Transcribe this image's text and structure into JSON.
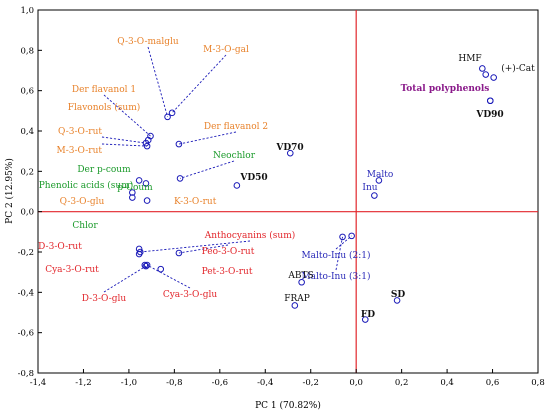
{
  "chart_data": {
    "type": "scatter",
    "xlabel": "PC 1 (70.82%)",
    "ylabel": "PC 2 (12.95%)",
    "xlim": [
      -1.4,
      0.8
    ],
    "ylim": [
      -0.8,
      1.0
    ],
    "xticks": [
      "-1,4",
      "-1,2",
      "-1,0",
      "-0,8",
      "-0,6",
      "-0,4",
      "-0,2",
      "0,0",
      "0,2",
      "0,4",
      "0,6",
      "0,8"
    ],
    "yticks": [
      "-0,8",
      "-0,6",
      "-0,4",
      "-0,2",
      "0,0",
      "0,2",
      "0,4",
      "0,6",
      "0,8",
      "1,0"
    ],
    "grid": false,
    "zero_lines": true,
    "colors": {
      "orange": "#e8822b",
      "green": "#1a9a2a",
      "red": "#e2262b",
      "blue": "#2a2ab8",
      "purple": "#8a1a8a",
      "black": "#111111",
      "marker": "#1a1ab8",
      "zeroline": "#e2262b"
    },
    "points": [
      {
        "label": "Q-3-O-malglu",
        "x": -0.83,
        "y": 0.47,
        "color": "orange"
      },
      {
        "label": "M-3-O-gal",
        "x": -0.81,
        "y": 0.49,
        "color": "orange"
      },
      {
        "label": "Der flavanol 1",
        "x": -0.905,
        "y": 0.375,
        "color": "orange"
      },
      {
        "label": "Flavonols (sum)",
        "x": -0.915,
        "y": 0.355,
        "color": "orange"
      },
      {
        "label": "Q-3-O-rut",
        "x": -0.925,
        "y": 0.34,
        "color": "orange"
      },
      {
        "label": "M-3-O-rut",
        "x": -0.92,
        "y": 0.325,
        "color": "orange"
      },
      {
        "label": "Der flavanol 2",
        "x": -0.78,
        "y": 0.335,
        "color": "orange"
      },
      {
        "label": "Neochlor",
        "x": -0.775,
        "y": 0.165,
        "color": "green"
      },
      {
        "label": "Der p-coum",
        "x": -0.955,
        "y": 0.155,
        "color": "green"
      },
      {
        "label": "p-Coum",
        "x": -0.925,
        "y": 0.14,
        "color": "green"
      },
      {
        "label": "Phenolic acids (sum)",
        "x": -0.985,
        "y": 0.095,
        "color": "green"
      },
      {
        "label": "Q-3-O-glu",
        "x": -0.985,
        "y": 0.07,
        "color": "orange"
      },
      {
        "label": "K-3-O-rut",
        "x": -0.92,
        "y": 0.055,
        "color": "orange"
      },
      {
        "label": "Chlor",
        "x": -0.955,
        "y": -0.185,
        "color": "green"
      },
      {
        "label": "Anthocyanins (sum)",
        "x": -0.95,
        "y": -0.2,
        "color": "red"
      },
      {
        "label": "D-3-O-rut",
        "x": -0.955,
        "y": -0.21,
        "color": "red"
      },
      {
        "label": "Peo-3-O-rut",
        "x": -0.78,
        "y": -0.205,
        "color": "red"
      },
      {
        "label": "Cya-3-O-rut",
        "x": -0.93,
        "y": -0.265,
        "color": "red"
      },
      {
        "label": "Pet-3-O-rut",
        "x": -0.86,
        "y": -0.285,
        "color": "red"
      },
      {
        "label": "D-3-O-glu",
        "x": -0.925,
        "y": -0.27,
        "color": "red"
      },
      {
        "label": "Cya-3-O-glu",
        "x": -0.92,
        "y": -0.265,
        "color": "red"
      },
      {
        "label": "VD70",
        "x": -0.29,
        "y": 0.29,
        "color": "black",
        "bold": true
      },
      {
        "label": "VD50",
        "x": -0.525,
        "y": 0.13,
        "color": "black",
        "bold": true
      },
      {
        "label": "Malto",
        "x": 0.1,
        "y": 0.155,
        "color": "blue"
      },
      {
        "label": "Inu",
        "x": 0.08,
        "y": 0.08,
        "color": "blue"
      },
      {
        "label": "Malto-Inu (2:1)",
        "x": -0.02,
        "y": -0.12,
        "color": "blue"
      },
      {
        "label": "Malto-Inu (3:1)",
        "x": -0.06,
        "y": -0.125,
        "color": "blue"
      },
      {
        "label": "ABTS",
        "x": -0.24,
        "y": -0.35,
        "color": "black"
      },
      {
        "label": "FRAP",
        "x": -0.27,
        "y": -0.465,
        "color": "black"
      },
      {
        "label": "SD",
        "x": 0.18,
        "y": -0.44,
        "color": "black",
        "bold": true
      },
      {
        "label": "FD",
        "x": 0.04,
        "y": -0.535,
        "color": "black",
        "bold": true
      },
      {
        "label": "HMF",
        "x": 0.555,
        "y": 0.71,
        "color": "black"
      },
      {
        "label": "(+)-Cat",
        "x": 0.605,
        "y": 0.665,
        "color": "black"
      },
      {
        "label": "",
        "x": 0.57,
        "y": 0.68,
        "color": "black"
      },
      {
        "label": "Total polyphenols",
        "x": 0.59,
        "y": 0.55,
        "color": "purple",
        "bold": true
      },
      {
        "label": "VD90",
        "x": 0.59,
        "y": 0.55,
        "color": "black",
        "bold": true
      }
    ]
  }
}
